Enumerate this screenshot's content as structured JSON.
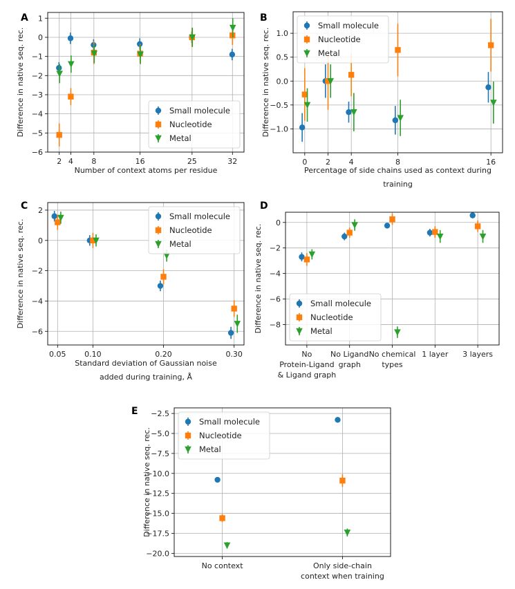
{
  "chart_data": [
    {
      "panel": "A",
      "type": "scatter",
      "error_bars": true,
      "xlabel": "Number of context atoms per residue",
      "ylabel": "Difference in native seq. rec.",
      "xlim": [
        0,
        34
      ],
      "ylim": [
        -6,
        1.3
      ],
      "xticks": [
        2,
        4,
        8,
        16,
        25,
        32
      ],
      "yticks": [
        -6,
        -5,
        -4,
        -3,
        -2,
        -1,
        0,
        1
      ],
      "grid": true,
      "legend_position": "lower-right",
      "series": [
        {
          "name": "Small molecule",
          "color": "#1f77b4",
          "marker": "circle",
          "x": [
            2,
            4,
            8,
            16,
            25,
            32
          ],
          "y": [
            -1.6,
            -0.05,
            -0.4,
            -0.35,
            0.0,
            -0.9
          ],
          "err": [
            0.3,
            0.3,
            0.3,
            0.3,
            0.3,
            0.3
          ]
        },
        {
          "name": "Nucleotide",
          "color": "#ff7f0e",
          "marker": "square",
          "x": [
            2,
            4,
            8,
            16,
            25,
            32
          ],
          "y": [
            -5.1,
            -3.1,
            -0.8,
            -0.85,
            0.0,
            0.1
          ],
          "err": [
            0.6,
            0.45,
            0.6,
            0.5,
            0.5,
            0.5
          ]
        },
        {
          "name": "Metal",
          "color": "#2ca02c",
          "marker": "triangle-down",
          "x": [
            2,
            4,
            8,
            16,
            25,
            32
          ],
          "y": [
            -1.9,
            -1.4,
            -0.85,
            -0.9,
            0.0,
            0.5
          ],
          "err": [
            0.5,
            0.45,
            0.5,
            0.5,
            0.5,
            0.5
          ]
        }
      ]
    },
    {
      "panel": "B",
      "type": "scatter",
      "error_bars": true,
      "xlabel": "Percentage of side chains used as context during training",
      "xlabel_lines": [
        "Percentage of side chains used as context during",
        "training"
      ],
      "ylabel": "Difference in native seq. rec.",
      "xlim": [
        -1,
        17
      ],
      "ylim": [
        -1.5,
        1.45
      ],
      "xticks": [
        0,
        2,
        4,
        8,
        16
      ],
      "yticks": [
        -1.0,
        -0.5,
        0.0,
        0.5,
        1.0
      ],
      "ytick_labels": [
        "−1.0",
        "−0.5",
        "0.0",
        "0.5",
        "1.0"
      ],
      "grid": true,
      "legend_position": "upper-left",
      "series": [
        {
          "name": "Small molecule",
          "color": "#1f77b4",
          "marker": "circle",
          "x": [
            0,
            2,
            4,
            8,
            16
          ],
          "y": [
            -0.97,
            0.0,
            -0.65,
            -0.82,
            -0.13
          ],
          "err": [
            0.3,
            0.35,
            0.22,
            0.3,
            0.32
          ]
        },
        {
          "name": "Nucleotide",
          "color": "#ff7f0e",
          "marker": "square",
          "x": [
            0,
            2,
            4,
            8,
            16
          ],
          "y": [
            -0.28,
            0.0,
            0.13,
            0.65,
            0.75
          ],
          "err": [
            0.55,
            0.6,
            0.45,
            0.55,
            0.55
          ]
        },
        {
          "name": "Metal",
          "color": "#2ca02c",
          "marker": "triangle-down",
          "x": [
            0,
            2,
            4,
            8,
            16
          ],
          "y": [
            -0.5,
            0.0,
            -0.65,
            -0.77,
            -0.45
          ],
          "err": [
            0.35,
            0.35,
            0.4,
            0.38,
            0.44
          ]
        }
      ]
    },
    {
      "panel": "C",
      "type": "scatter",
      "error_bars": true,
      "xlabel": "Standard deviation of  Gaussian noise added during training, Å",
      "xlabel_lines": [
        "Standard deviation of  Gaussian noise",
        "added during training, Å"
      ],
      "ylabel": "Difference in native seq. rec.",
      "xlim": [
        0.036,
        0.314
      ],
      "ylim": [
        -6.9,
        2.5
      ],
      "xticks": [
        0.05,
        0.1,
        0.2,
        0.3
      ],
      "xtick_labels": [
        "0.05",
        "0.10",
        "0.20",
        "0.30"
      ],
      "yticks": [
        -6,
        -4,
        -2,
        0,
        2
      ],
      "ytick_labels": [
        "−6",
        "−4",
        "−2",
        "0",
        "2"
      ],
      "grid": true,
      "legend_position": "upper-right",
      "series": [
        {
          "name": "Small molecule",
          "color": "#1f77b4",
          "marker": "circle",
          "x": [
            0.05,
            0.1,
            0.2,
            0.3
          ],
          "y": [
            1.6,
            0.0,
            -3.0,
            -6.1
          ],
          "err": [
            0.35,
            0.35,
            0.35,
            0.4
          ]
        },
        {
          "name": "Nucleotide",
          "color": "#ff7f0e",
          "marker": "square",
          "x": [
            0.05,
            0.1,
            0.2,
            0.3
          ],
          "y": [
            1.2,
            0.0,
            -2.4,
            -4.5
          ],
          "err": [
            0.5,
            0.5,
            0.5,
            0.55
          ]
        },
        {
          "name": "Metal",
          "color": "#2ca02c",
          "marker": "triangle-down",
          "x": [
            0.05,
            0.1,
            0.2,
            0.3
          ],
          "y": [
            1.5,
            0.0,
            -1.0,
            -5.5
          ],
          "err": [
            0.4,
            0.4,
            0.4,
            0.6
          ]
        }
      ]
    },
    {
      "panel": "D",
      "type": "scatter",
      "error_bars": true,
      "xlabel": "",
      "ylabel": "Difference in native seq. rec.",
      "categories": [
        "No Protein-Ligand & Ligand graph",
        "No Ligand graph",
        "No chemical types",
        "1 layer",
        "3 layers"
      ],
      "category_label_lines": [
        [
          "No",
          "Protein-Ligand",
          "& Ligand graph"
        ],
        [
          "No Ligand",
          "graph"
        ],
        [
          "No chemical",
          "types"
        ],
        [
          "1 layer"
        ],
        [
          "3 layers"
        ]
      ],
      "ylim": [
        -9.6,
        0.8
      ],
      "yticks": [
        -8,
        -6,
        -4,
        -2,
        0
      ],
      "ytick_labels": [
        "−8",
        "−6",
        "−4",
        "−2",
        "0"
      ],
      "grid": true,
      "legend_position": "lower-left",
      "series": [
        {
          "name": "Small molecule",
          "color": "#1f77b4",
          "marker": "circle",
          "values": [
            -2.7,
            -1.1,
            -0.25,
            -0.8,
            0.55
          ],
          "err": [
            0.35,
            0.3,
            0.2,
            0.3,
            0.15
          ]
        },
        {
          "name": "Nucleotide",
          "color": "#ff7f0e",
          "marker": "square",
          "values": [
            -2.9,
            -0.8,
            0.25,
            -0.75,
            -0.3
          ],
          "err": [
            0.5,
            0.4,
            0.45,
            0.45,
            0.45
          ]
        },
        {
          "name": "Metal",
          "color": "#2ca02c",
          "marker": "triangle-down",
          "values": [
            -2.5,
            -0.2,
            -8.6,
            -1.1,
            -1.1
          ],
          "err": [
            0.4,
            0.45,
            0.45,
            0.5,
            0.5
          ]
        }
      ]
    },
    {
      "panel": "E",
      "type": "scatter",
      "error_bars": true,
      "xlabel": "",
      "ylabel": "Difference in native seq. rec.",
      "categories": [
        "No context",
        "Only side-chain context when training"
      ],
      "category_label_lines": [
        [
          "No context"
        ],
        [
          "Only side-chain",
          "context when training"
        ]
      ],
      "ylim": [
        -20.4,
        -1.8
      ],
      "yticks": [
        -20,
        -17.5,
        -15,
        -12.5,
        -10,
        -7.5,
        -5,
        -2.5
      ],
      "ytick_labels": [
        "−20.0",
        "−17.5",
        "−15.0",
        "−12.5",
        "−10.0",
        "−7.5",
        "−5.0",
        "−2.5"
      ],
      "grid": true,
      "legend_position": "upper-left",
      "series": [
        {
          "name": "Small molecule",
          "color": "#1f77b4",
          "marker": "circle",
          "values": [
            -10.8,
            -3.3
          ],
          "err": [
            0.3,
            0.2
          ]
        },
        {
          "name": "Nucleotide",
          "color": "#ff7f0e",
          "marker": "square",
          "values": [
            -15.6,
            -10.9
          ],
          "err": [
            0.5,
            0.8
          ]
        },
        {
          "name": "Metal",
          "color": "#2ca02c",
          "marker": "triangle-down",
          "values": [
            -19.0,
            -17.4
          ],
          "err": [
            0.4,
            0.5
          ]
        }
      ]
    }
  ]
}
